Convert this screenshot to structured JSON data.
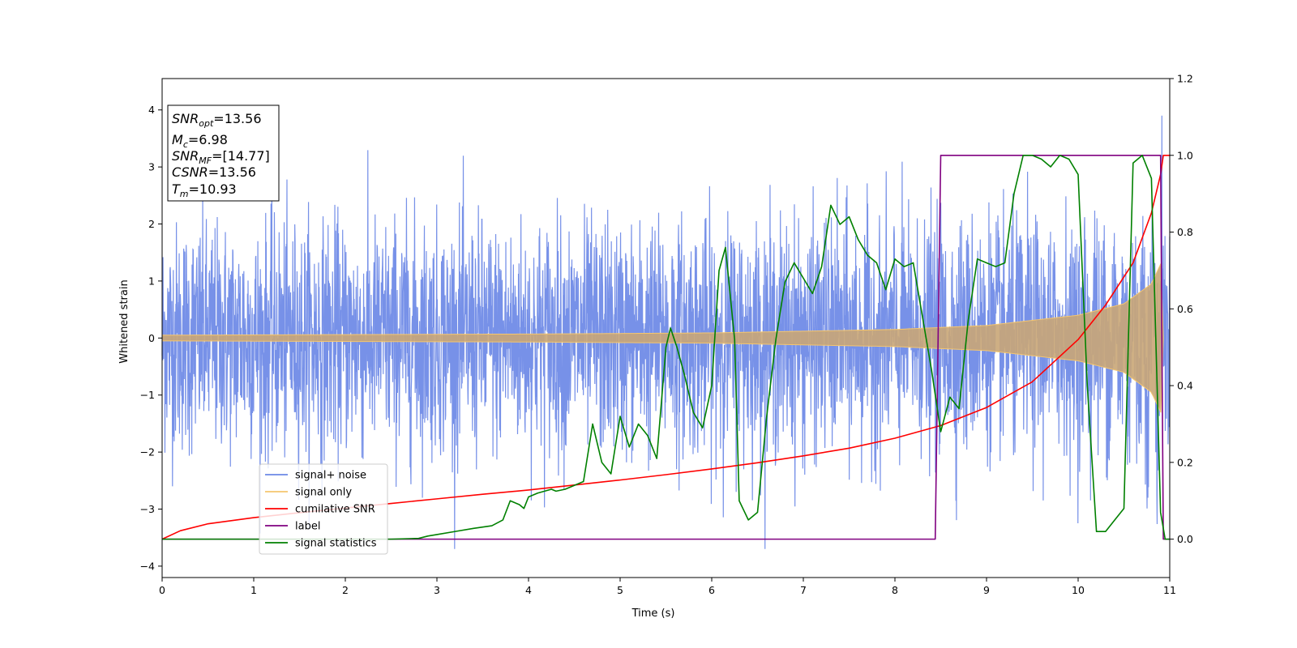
{
  "chart_data": {
    "type": "line",
    "xlabel": "Time (s)",
    "ylabel": "Whitened strain",
    "xlim": [
      0,
      11
    ],
    "ylim": [
      -4.2,
      4.55
    ],
    "y2lim": [
      -0.1,
      1.2
    ],
    "xticks": [
      0,
      1,
      2,
      3,
      4,
      5,
      6,
      7,
      8,
      9,
      10,
      11
    ],
    "yticks": [
      -4,
      -3,
      -2,
      -1,
      0,
      1,
      2,
      3,
      4
    ],
    "y2ticks": [
      0.0,
      0.2,
      0.4,
      0.6,
      0.8,
      1.0,
      1.2
    ],
    "grid": false,
    "legend_position": "lower-left",
    "info_box": {
      "snr_opt": "13.56",
      "mc": "6.98",
      "snr_mf": "[14.77]",
      "csnr": "13.56",
      "tm": "10.93"
    },
    "series": [
      {
        "name": "signal+ noise",
        "color": "#6b88e6",
        "axis": "left",
        "description_values": {
          "envelope_upper_typical": 2.5,
          "envelope_lower_typical": -2.5,
          "max_peak": 4.15,
          "max_peak_x": 3.57,
          "min_peak": -3.8,
          "min_peak_x": 7.1
        }
      },
      {
        "name": "signal only",
        "color": "#f5c66e",
        "axis": "left",
        "amplitude_envelope": {
          "x": [
            0,
            2,
            4,
            6,
            8,
            9,
            10,
            10.5,
            10.8,
            10.93
          ],
          "amplitude": [
            0.05,
            0.06,
            0.07,
            0.09,
            0.15,
            0.22,
            0.4,
            0.6,
            0.95,
            1.4
          ]
        }
      },
      {
        "name": "cumilative SNR",
        "color": "#ff0000",
        "axis": "right",
        "x": [
          0,
          0.2,
          0.5,
          1,
          1.5,
          2,
          2.5,
          3,
          3.5,
          4,
          4.5,
          5,
          5.5,
          6,
          6.5,
          7,
          7.5,
          8,
          8.5,
          9,
          9.5,
          10,
          10.3,
          10.6,
          10.8,
          10.9,
          10.93,
          11
        ],
        "y": [
          0.0,
          0.022,
          0.04,
          0.056,
          0.069,
          0.081,
          0.093,
          0.105,
          0.117,
          0.128,
          0.141,
          0.154,
          0.168,
          0.183,
          0.199,
          0.217,
          0.237,
          0.263,
          0.296,
          0.343,
          0.41,
          0.52,
          0.61,
          0.72,
          0.85,
          0.95,
          1.0,
          1.0
        ]
      },
      {
        "name": "label",
        "color": "#800080",
        "axis": "right",
        "x": [
          0,
          8.44,
          8.5,
          10.9,
          10.93,
          11
        ],
        "y": [
          0,
          0,
          1,
          1,
          0,
          0
        ]
      },
      {
        "name": "signal statistics",
        "color": "#008000",
        "axis": "right",
        "x": [
          0,
          0.5,
          1,
          1.5,
          2,
          2.5,
          2.8,
          2.9,
          3.0,
          3.2,
          3.4,
          3.6,
          3.72,
          3.8,
          3.9,
          3.95,
          4.0,
          4.1,
          4.25,
          4.3,
          4.4,
          4.5,
          4.6,
          4.7,
          4.75,
          4.8,
          4.9,
          5.0,
          5.1,
          5.2,
          5.3,
          5.4,
          5.5,
          5.55,
          5.62,
          5.7,
          5.8,
          5.9,
          6.0,
          6.08,
          6.15,
          6.2,
          6.25,
          6.3,
          6.4,
          6.5,
          6.6,
          6.7,
          6.8,
          6.9,
          7.0,
          7.1,
          7.2,
          7.3,
          7.4,
          7.5,
          7.6,
          7.7,
          7.8,
          7.9,
          8.0,
          8.1,
          8.2,
          8.3,
          8.4,
          8.5,
          8.6,
          8.7,
          8.8,
          8.9,
          9.0,
          9.1,
          9.2,
          9.3,
          9.4,
          9.5,
          9.6,
          9.7,
          9.8,
          9.9,
          10.0,
          10.1,
          10.2,
          10.3,
          10.4,
          10.5,
          10.6,
          10.7,
          10.8,
          10.9,
          10.95,
          11.0
        ],
        "y": [
          0.0,
          0.0,
          0.0,
          0.0,
          0.0,
          0.0,
          0.002,
          0.008,
          0.012,
          0.02,
          0.028,
          0.035,
          0.05,
          0.1,
          0.09,
          0.08,
          0.11,
          0.12,
          0.13,
          0.125,
          0.13,
          0.14,
          0.15,
          0.3,
          0.25,
          0.2,
          0.17,
          0.32,
          0.24,
          0.3,
          0.27,
          0.21,
          0.5,
          0.55,
          0.5,
          0.43,
          0.33,
          0.29,
          0.4,
          0.7,
          0.76,
          0.64,
          0.52,
          0.1,
          0.05,
          0.07,
          0.32,
          0.52,
          0.67,
          0.72,
          0.68,
          0.64,
          0.71,
          0.87,
          0.82,
          0.84,
          0.78,
          0.74,
          0.72,
          0.65,
          0.73,
          0.71,
          0.72,
          0.58,
          0.44,
          0.28,
          0.37,
          0.34,
          0.57,
          0.73,
          0.72,
          0.71,
          0.72,
          0.9,
          1.0,
          1.0,
          0.99,
          0.97,
          1.0,
          0.99,
          0.95,
          0.4,
          0.02,
          0.02,
          0.05,
          0.08,
          0.98,
          1.0,
          0.94,
          0.07,
          0.0,
          0.0
        ]
      }
    ]
  }
}
